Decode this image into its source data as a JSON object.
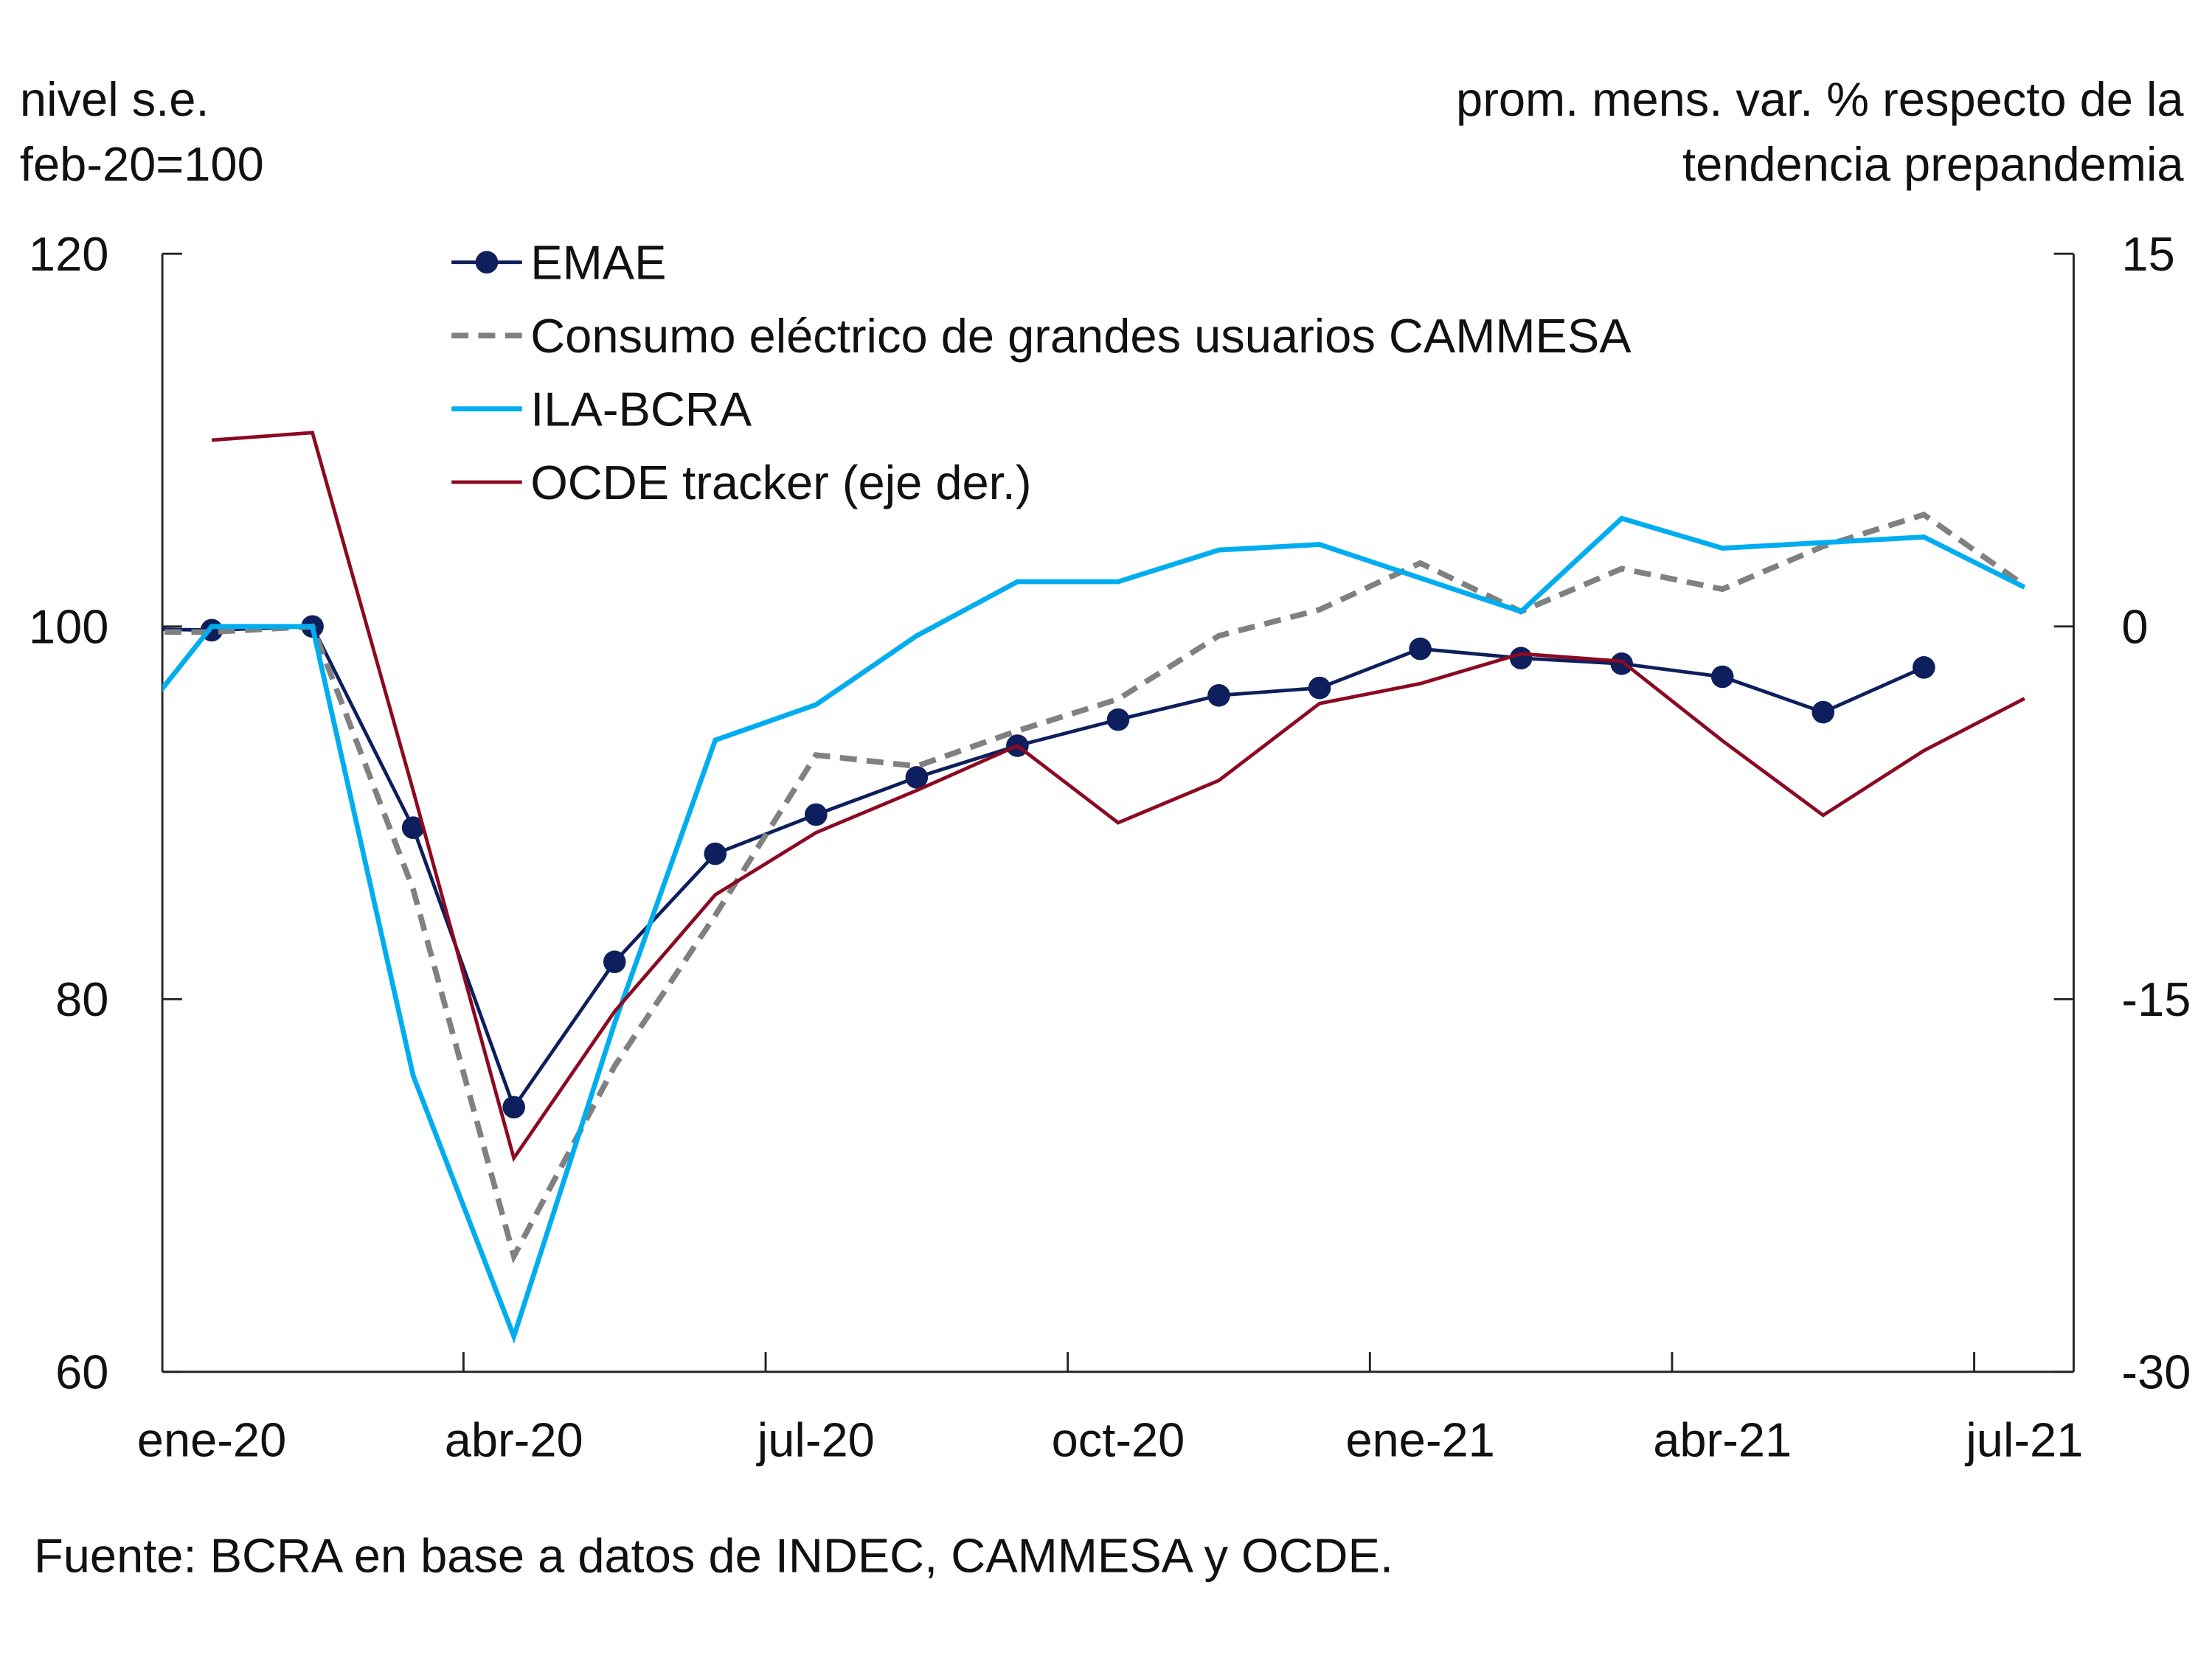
{
  "chart_data": {
    "type": "line",
    "left_axis_label": [
      "nivel s.e.",
      "feb-20=100"
    ],
    "right_axis_label": [
      "prom. mens. var. % respecto de la",
      "tendencia prepandemia"
    ],
    "left_ylim": [
      60,
      120
    ],
    "left_ticks": [
      "60",
      "80",
      "100",
      "120"
    ],
    "right_ylim": [
      -30,
      15
    ],
    "right_ticks": [
      "-30",
      "-15",
      "0",
      "15"
    ],
    "x": [
      "dic-19",
      "ene-20",
      "feb-20",
      "mar-20",
      "abr-20",
      "may-20",
      "jun-20",
      "jul-20",
      "ago-20",
      "sep-20",
      "oct-20",
      "nov-20",
      "dic-20",
      "ene-21",
      "feb-21",
      "mar-21",
      "abr-21",
      "may-21",
      "jun-21",
      "jul-21"
    ],
    "x_tick_labels": [
      "ene-20",
      "abr-20",
      "jul-20",
      "oct-20",
      "ene-21",
      "abr-21",
      "jul-21"
    ],
    "grid": false,
    "legend_placement": "top-left",
    "series": [
      {
        "name": "EMAE",
        "axis": "left",
        "color": "#0d1f5c",
        "style": "solid-markers",
        "values": [
          99.9,
          99.8,
          100,
          89.2,
          74.2,
          82.0,
          87.8,
          89.9,
          91.9,
          93.6,
          95.0,
          96.3,
          96.7,
          98.8,
          98.3,
          98.0,
          97.3,
          95.4,
          97.8,
          null
        ]
      },
      {
        "name": "Consumo eléctrico de grandes usuarios CAMMESA",
        "axis": "left",
        "color": "#808080",
        "style": "dashed",
        "values": [
          99.7,
          99.7,
          100,
          85.9,
          66.2,
          76.4,
          84.5,
          93.1,
          92.5,
          94.4,
          96.1,
          99.5,
          100.9,
          103.4,
          100.8,
          103.1,
          102.0,
          104.3,
          106.0,
          102.2
        ]
      },
      {
        "name": "ILA-BCRA",
        "axis": "left",
        "color": "#00adef",
        "style": "solid",
        "values": [
          93.2,
          100,
          100,
          75.9,
          61.9,
          78.7,
          93.9,
          95.8,
          99.5,
          102.4,
          102.4,
          104.1,
          104.4,
          102.6,
          100.8,
          105.8,
          104.2,
          104.5,
          104.8,
          102.1
        ]
      },
      {
        "name": "OCDE tracker (eje der.)",
        "axis": "right",
        "color": "#8b0a22",
        "style": "solid",
        "values": [
          null,
          7.5,
          7.8,
          -6.6,
          -21.4,
          -15.5,
          -10.8,
          -8.3,
          -6.6,
          -4.8,
          -7.9,
          -6.2,
          -3.1,
          -2.3,
          -1.1,
          -1.4,
          -4.6,
          -7.6,
          -5.0,
          -2.9
        ]
      }
    ],
    "source": "Fuente: BCRA en base a datos de INDEC, CAMMESA y OCDE."
  }
}
